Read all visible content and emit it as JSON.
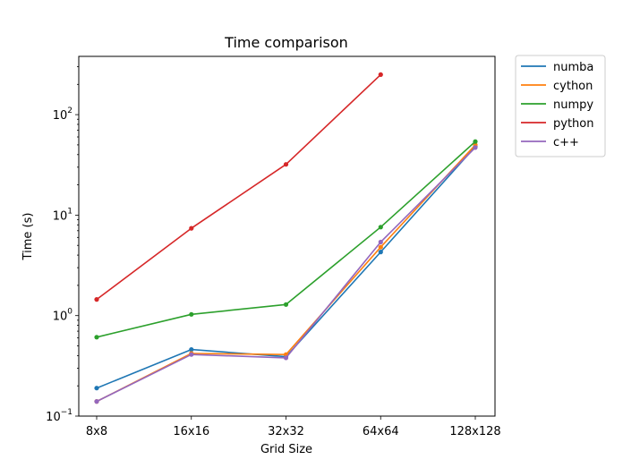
{
  "chart_data": {
    "type": "line",
    "title": "Time comparison",
    "xlabel": "Grid Size",
    "ylabel": "Time (s)",
    "yscale": "log",
    "ylim": [
      0.1,
      380
    ],
    "yticks": [
      {
        "value": 0.1,
        "base": "10",
        "exp": "−1"
      },
      {
        "value": 1,
        "base": "10",
        "exp": "0"
      },
      {
        "value": 10,
        "base": "10",
        "exp": "1"
      },
      {
        "value": 100,
        "base": "10",
        "exp": "2"
      }
    ],
    "categories": [
      "8x8",
      "16x16",
      "32x32",
      "64x64",
      "128x128"
    ],
    "grid": false,
    "legend_position": "outside-top-right",
    "series": [
      {
        "name": "numba",
        "color": "#1f77b4",
        "values": [
          0.19,
          0.46,
          0.39,
          4.3,
          48
        ]
      },
      {
        "name": "cython",
        "color": "#ff7f0e",
        "values": [
          0.14,
          0.42,
          0.41,
          4.8,
          50
        ]
      },
      {
        "name": "numpy",
        "color": "#2ca02c",
        "values": [
          0.61,
          1.03,
          1.29,
          7.6,
          54
        ]
      },
      {
        "name": "python",
        "color": "#d62728",
        "values": [
          1.45,
          7.4,
          32,
          250,
          null
        ]
      },
      {
        "name": "c++",
        "color": "#9467bd",
        "values": [
          0.14,
          0.41,
          0.38,
          5.4,
          47
        ]
      }
    ]
  }
}
